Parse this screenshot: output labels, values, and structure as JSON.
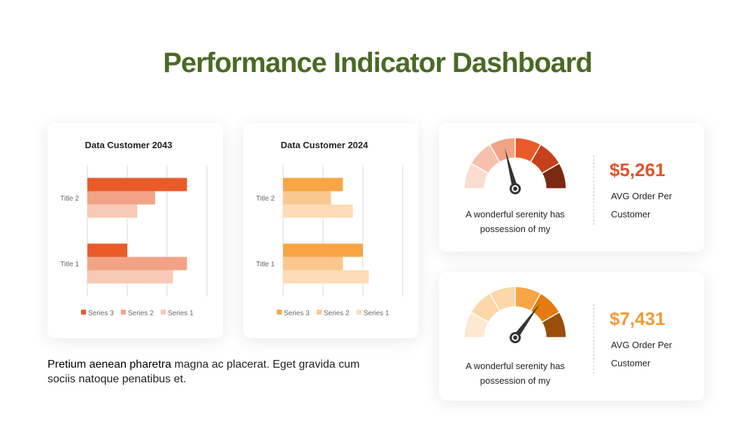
{
  "page": {
    "title": "Performance Indicator Dashboard",
    "body_strong": "Pretium aenean pharetra",
    "body_rest": " magna ac placerat. Eget gravida cum sociis natoque penatibus et."
  },
  "chart_data": [
    {
      "type": "bar",
      "orientation": "horizontal",
      "title": "Data Customer 2043",
      "categories": [
        "Title 2",
        "Title 1"
      ],
      "xlim": [
        0,
        3
      ],
      "grid": true,
      "legend_position": "bottom",
      "series": [
        {
          "name": "Series 3",
          "values": [
            2.5,
            1.0
          ],
          "color": "#ea5b2a"
        },
        {
          "name": "Series 2",
          "values": [
            1.7,
            2.5
          ],
          "color": "#f2a385"
        },
        {
          "name": "Series 1",
          "values": [
            1.25,
            2.15
          ],
          "color": "#f7c9b6"
        }
      ]
    },
    {
      "type": "bar",
      "orientation": "horizontal",
      "title": "Data Customer 2024",
      "categories": [
        "Title 2",
        "Title 1"
      ],
      "xlim": [
        0,
        3
      ],
      "grid": true,
      "legend_position": "bottom",
      "series": [
        {
          "name": "Series 3",
          "values": [
            1.5,
            2.0
          ],
          "color": "#f7a545"
        },
        {
          "name": "Series 2",
          "values": [
            1.2,
            1.5
          ],
          "color": "#fac88f"
        },
        {
          "name": "Series 1",
          "values": [
            1.75,
            2.15
          ],
          "color": "#fcdcb6"
        }
      ]
    }
  ],
  "gauges": [
    {
      "value": "$5,261",
      "label": "AVG Order Per Customer",
      "caption": "A wonderful serenity has possession of my",
      "needle_fraction": 0.42,
      "value_color": "#e2522a",
      "segments": [
        "#fadcd1",
        "#f7c0ad",
        "#f2a385",
        "#ea5b2a",
        "#c7401b",
        "#7a2a10"
      ]
    },
    {
      "value": "$7,431",
      "label": "AVG Order Per Customer",
      "caption": "A wonderful serenity has possession of my",
      "needle_fraction": 0.7,
      "value_color": "#f29a35",
      "segments": [
        "#fde8d0",
        "#fcd7a8",
        "#fcd7a8",
        "#f7a545",
        "#e57b0e",
        "#9a4e0a"
      ]
    }
  ]
}
